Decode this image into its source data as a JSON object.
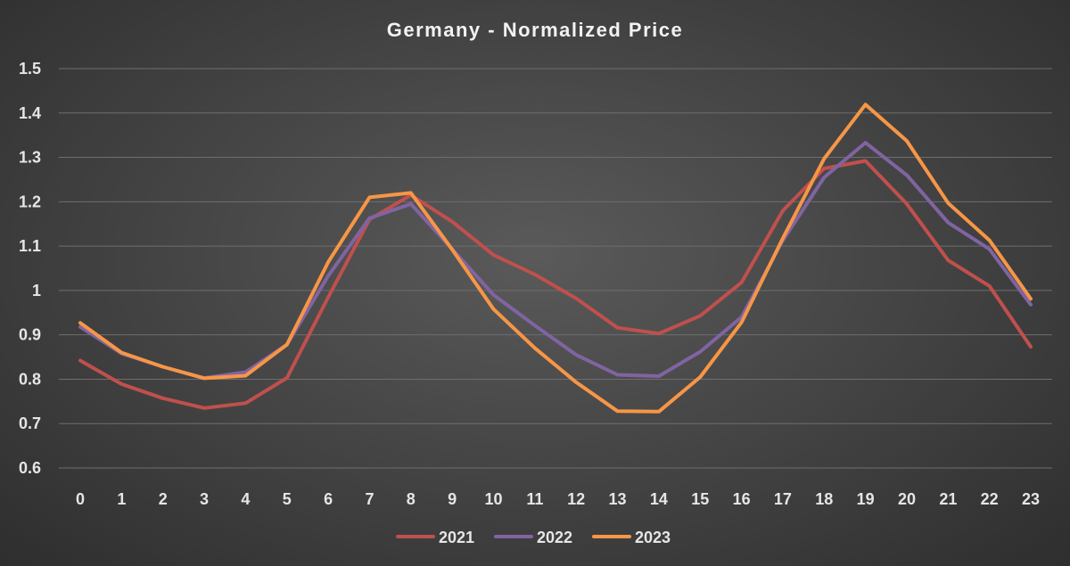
{
  "chart_data": {
    "type": "line",
    "title": "Germany - Normalized Price",
    "xlabel": "",
    "ylabel": "",
    "categories": [
      "0",
      "1",
      "2",
      "3",
      "4",
      "5",
      "6",
      "7",
      "8",
      "9",
      "10",
      "11",
      "12",
      "13",
      "14",
      "15",
      "16",
      "17",
      "18",
      "19",
      "20",
      "21",
      "22",
      "23"
    ],
    "ylim": [
      0.6,
      1.5
    ],
    "yticks": [
      "0.6",
      "0.7",
      "0.8",
      "0.9",
      "1",
      "1.1",
      "1.2",
      "1.3",
      "1.4",
      "1.5"
    ],
    "grid": true,
    "legend_position": "bottom",
    "series": [
      {
        "name": "2021",
        "color": "#c0504d",
        "values": [
          0.842,
          0.789,
          0.757,
          0.735,
          0.746,
          0.803,
          0.985,
          1.16,
          1.215,
          1.155,
          1.08,
          1.036,
          0.982,
          0.916,
          0.903,
          0.943,
          1.018,
          1.18,
          1.275,
          1.292,
          1.195,
          1.068,
          1.01,
          0.873
        ]
      },
      {
        "name": "2022",
        "color": "#8064a2",
        "values": [
          0.918,
          0.858,
          0.828,
          0.803,
          0.816,
          0.878,
          1.033,
          1.163,
          1.195,
          1.093,
          0.99,
          0.921,
          0.855,
          0.81,
          0.807,
          0.862,
          0.94,
          1.113,
          1.255,
          1.333,
          1.26,
          1.153,
          1.093,
          0.968
        ]
      },
      {
        "name": "2023",
        "color": "#f79646",
        "values": [
          0.927,
          0.86,
          0.828,
          0.802,
          0.808,
          0.878,
          1.064,
          1.21,
          1.22,
          1.092,
          0.958,
          0.87,
          0.793,
          0.728,
          0.727,
          0.805,
          0.928,
          1.118,
          1.297,
          1.419,
          1.337,
          1.197,
          1.113,
          0.981
        ]
      }
    ]
  }
}
